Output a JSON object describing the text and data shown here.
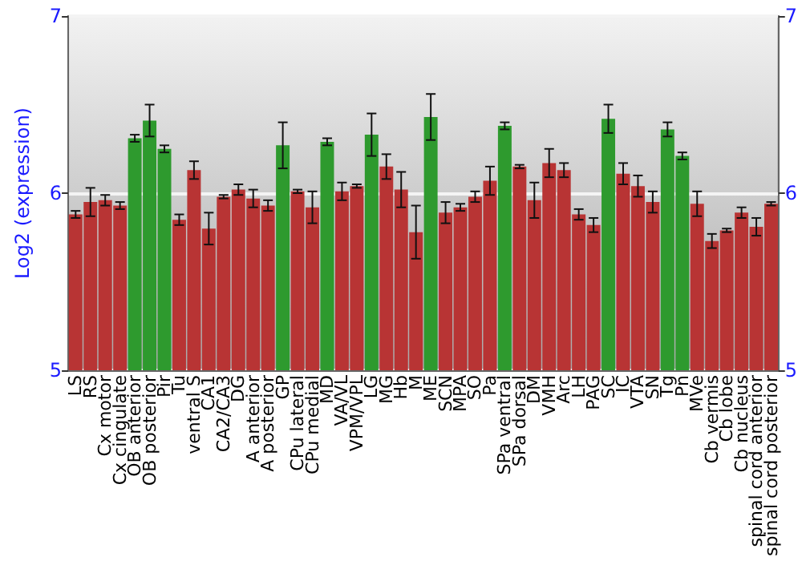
{
  "chart_data": {
    "type": "bar",
    "ylabel": "Log2 (expression)",
    "categories": [
      "LS",
      "RS",
      "Cx motor",
      "Cx cingulate",
      "OB anterior",
      "OB posterior",
      "Pir",
      "Tu",
      "ventral S",
      "CA1",
      "CA2/CA3",
      "DG",
      "A anterior",
      "A posterior",
      "GP",
      "CPu lateral",
      "CPu medial",
      "MD",
      "VA/VL",
      "VPM/VPL",
      "LG",
      "MG",
      "Hb",
      "M",
      "ME",
      "SCN",
      "MPA",
      "SO",
      "Pa",
      "SPa ventral",
      "SPa dorsal",
      "DM",
      "VMH",
      "Arc",
      "LH",
      "PAG",
      "SC",
      "IC",
      "VTA",
      "SN",
      "Tg",
      "Pn",
      "MVe",
      "Cb vermis",
      "Cb lobe",
      "Cb nucleus",
      "spinal cord anterior",
      "spinal cord posterior"
    ],
    "values": [
      5.88,
      5.95,
      5.96,
      5.93,
      6.31,
      6.41,
      6.25,
      5.85,
      6.13,
      5.8,
      5.98,
      6.02,
      5.97,
      5.93,
      6.27,
      6.01,
      5.92,
      6.29,
      6.01,
      6.04,
      6.33,
      6.15,
      6.02,
      5.78,
      6.43,
      5.89,
      5.92,
      5.98,
      6.07,
      6.38,
      6.15,
      5.96,
      6.17,
      6.13,
      5.88,
      5.82,
      6.42,
      6.11,
      6.04,
      5.95,
      6.36,
      6.21,
      5.94,
      5.73,
      5.79,
      5.89,
      5.81,
      5.94
    ],
    "errors": [
      0.02,
      0.08,
      0.03,
      0.02,
      0.02,
      0.09,
      0.02,
      0.03,
      0.05,
      0.09,
      0.01,
      0.03,
      0.05,
      0.03,
      0.13,
      0.01,
      0.09,
      0.02,
      0.05,
      0.01,
      0.12,
      0.07,
      0.1,
      0.15,
      0.13,
      0.06,
      0.02,
      0.03,
      0.08,
      0.02,
      0.01,
      0.1,
      0.08,
      0.04,
      0.03,
      0.04,
      0.08,
      0.06,
      0.06,
      0.06,
      0.04,
      0.02,
      0.07,
      0.04,
      0.01,
      0.03,
      0.05,
      0.01
    ],
    "colors": [
      "#b83434",
      "#b83434",
      "#b83434",
      "#b83434",
      "#2e9a2e",
      "#2e9a2e",
      "#2e9a2e",
      "#b83434",
      "#b83434",
      "#b83434",
      "#b83434",
      "#b83434",
      "#b83434",
      "#b83434",
      "#2e9a2e",
      "#b83434",
      "#b83434",
      "#2e9a2e",
      "#b83434",
      "#b83434",
      "#2e9a2e",
      "#b83434",
      "#b83434",
      "#b83434",
      "#2e9a2e",
      "#b83434",
      "#b83434",
      "#b83434",
      "#b83434",
      "#2e9a2e",
      "#b83434",
      "#b83434",
      "#b83434",
      "#b83434",
      "#b83434",
      "#b83434",
      "#2e9a2e",
      "#b83434",
      "#b83434",
      "#b83434",
      "#2e9a2e",
      "#2e9a2e",
      "#b83434",
      "#b83434",
      "#b83434",
      "#b83434",
      "#b83434",
      "#b83434"
    ],
    "ylim": [
      5,
      7
    ],
    "yticks": [
      5,
      6,
      7
    ],
    "y2lim": [
      5,
      7
    ],
    "y2ticks": [
      5,
      6,
      7
    ],
    "grid": "y"
  }
}
